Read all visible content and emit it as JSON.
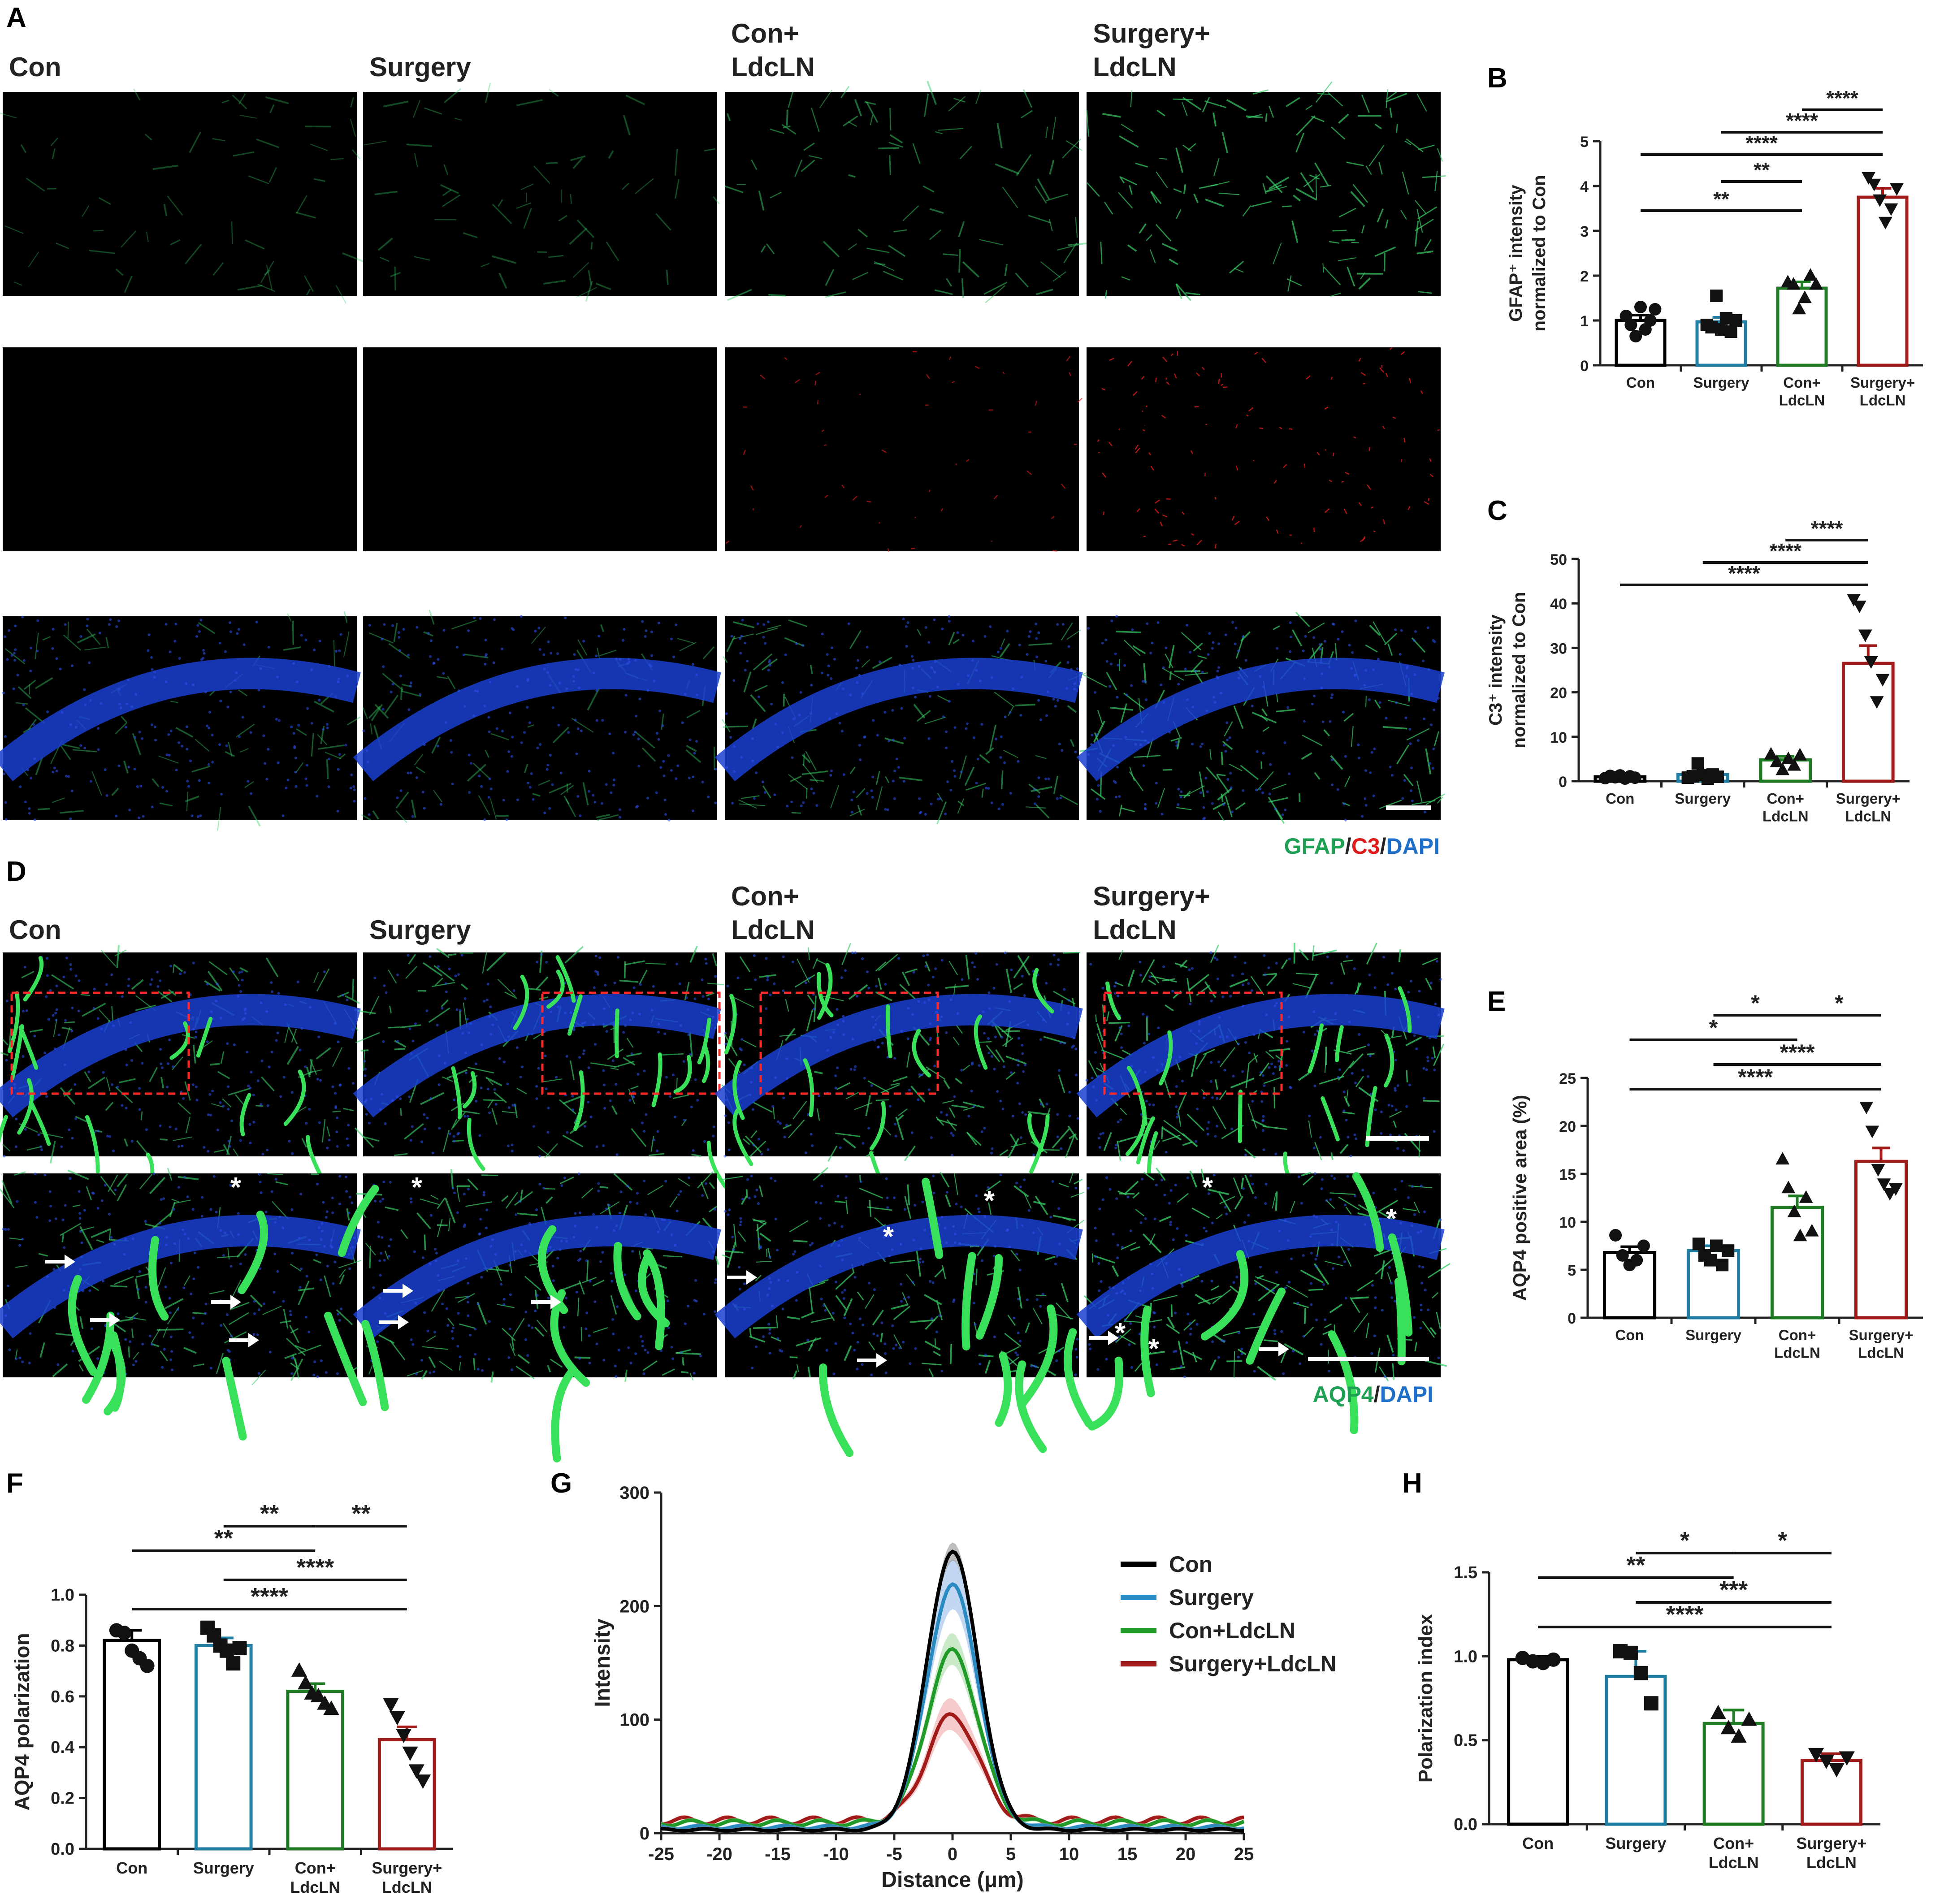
{
  "panels": {
    "a": {
      "letter": "A",
      "columns": [
        "Con",
        "Surgery",
        "Con+\nLdcLN",
        "Surgery+\nLdcLN"
      ],
      "stain": {
        "p1": "GFAP",
        "s1": "/",
        "p2": "C3",
        "s2": "/",
        "p3": "DAPI"
      }
    },
    "d": {
      "letter": "D",
      "columns": [
        "Con",
        "Surgery",
        "Con+\nLdcLN",
        "Surgery+\nLdcLN"
      ],
      "stain": {
        "p1": "AQP4",
        "s1": "/",
        "p2": "DAPI"
      }
    }
  },
  "colors": {
    "con": "#000000",
    "surgery": "#1f7ea1",
    "con_ldcln": "#1e7a23",
    "surgery_ldcln": "#a11b1b",
    "green_stain": "#1ea055",
    "red_stain": "#e01b1b",
    "blue_stain": "#1e6fc8"
  },
  "chart_data": [
    {
      "id": "B",
      "type": "bar",
      "title": "",
      "xlabel": "",
      "ylabel": "GFAP+ intensity normalized to Con",
      "ylabel_lines": [
        "GFAP⁺ intensity",
        "normalized to Con"
      ],
      "categories": [
        "Con",
        "Surgery",
        "Con+\nLdcLN",
        "Surgery+\nLdcLN"
      ],
      "values": [
        1.0,
        0.97,
        1.72,
        3.75
      ],
      "sem": [
        0.12,
        0.1,
        0.14,
        0.2
      ],
      "points": [
        [
          1.1,
          0.9,
          0.65,
          1.3,
          0.8,
          1.0,
          1.25
        ],
        [
          0.9,
          0.85,
          1.55,
          0.8,
          1.05,
          0.75,
          1.0
        ],
        [
          1.85,
          1.8,
          1.25,
          1.5,
          2.0,
          1.8
        ],
        [
          4.2,
          4.05,
          3.7,
          3.2,
          3.5,
          3.95
        ]
      ],
      "markers": [
        "circle",
        "square",
        "triangle",
        "triangle-down"
      ],
      "ylim": [
        0,
        5
      ],
      "yticks": [
        0,
        1,
        2,
        3,
        4,
        5
      ],
      "sig": [
        {
          "from": 2,
          "to": 3,
          "label": "****"
        },
        {
          "from": 1,
          "to": 3,
          "label": "****"
        },
        {
          "from": 0,
          "to": 3,
          "label": "****"
        },
        {
          "from": 1,
          "to": 2,
          "label": "**"
        },
        {
          "from": 0,
          "to": 2,
          "label": "**"
        }
      ]
    },
    {
      "id": "C",
      "type": "bar",
      "title": "",
      "xlabel": "",
      "ylabel": "C3+ intensity normalized to Con",
      "ylabel_lines": [
        "C3⁺ intensity",
        "normalized to Con"
      ],
      "categories": [
        "Con",
        "Surgery",
        "Con+\nLdcLN",
        "Surgery+\nLdcLN"
      ],
      "values": [
        1.0,
        1.5,
        4.8,
        26.5
      ],
      "sem": [
        0.25,
        0.45,
        0.8,
        4.0
      ],
      "points": [
        [
          0.7,
          1.2,
          0.9,
          1.3,
          0.6,
          1.1,
          0.8
        ],
        [
          0.8,
          1.1,
          4.0,
          1.4,
          0.6,
          1.5,
          1.0
        ],
        [
          6.0,
          4.3,
          2.5,
          5.0,
          3.5,
          5.8
        ],
        [
          41,
          39.5,
          33,
          27,
          18,
          23
        ]
      ],
      "markers": [
        "circle",
        "square",
        "triangle",
        "triangle-down"
      ],
      "ylim": [
        0,
        50
      ],
      "yticks": [
        0,
        10,
        20,
        30,
        40,
        50
      ],
      "sig": [
        {
          "from": 2,
          "to": 3,
          "label": "****"
        },
        {
          "from": 1,
          "to": 3,
          "label": "****"
        },
        {
          "from": 0,
          "to": 3,
          "label": "****"
        }
      ]
    },
    {
      "id": "E",
      "type": "bar",
      "title": "",
      "xlabel": "",
      "ylabel": "AQP4 positive area (%)",
      "categories": [
        "Con",
        "Surgery",
        "Con+\nLdcLN",
        "Surgery+\nLdcLN"
      ],
      "values": [
        6.8,
        7.0,
        11.5,
        16.3
      ],
      "sem": [
        0.6,
        0.5,
        1.2,
        1.4
      ],
      "points": [
        [
          8.6,
          6.5,
          5.5,
          6.0,
          7.5
        ],
        [
          7.7,
          6.5,
          6.0,
          7.5,
          5.5,
          7.0
        ],
        [
          16.5,
          13.5,
          11.0,
          8.5,
          12.5,
          9.0
        ],
        [
          22.0,
          19.5,
          15.5,
          14.0,
          13.0,
          13.5
        ]
      ],
      "markers": [
        "circle",
        "square",
        "triangle",
        "triangle-down"
      ],
      "ylim": [
        0,
        25
      ],
      "yticks": [
        0,
        5,
        10,
        15,
        20,
        25
      ],
      "sig": [
        {
          "from": 1,
          "to": 2,
          "label": "*"
        },
        {
          "from": 2,
          "to": 3,
          "label": "*"
        },
        {
          "from": 0,
          "to": 2,
          "label": "*"
        },
        {
          "from": 1,
          "to": 3,
          "label": "****"
        },
        {
          "from": 0,
          "to": 3,
          "label": "****"
        }
      ]
    },
    {
      "id": "F",
      "type": "bar",
      "title": "",
      "xlabel": "",
      "ylabel": "AQP4 polarization",
      "categories": [
        "Con",
        "Surgery",
        "Con+\nLdcLN",
        "Surgery+\nLdcLN"
      ],
      "values": [
        0.82,
        0.8,
        0.62,
        0.43
      ],
      "sem": [
        0.04,
        0.03,
        0.03,
        0.05
      ],
      "points": [
        [
          0.86,
          0.85,
          0.78,
          0.75,
          0.72
        ],
        [
          0.87,
          0.84,
          0.8,
          0.78,
          0.73,
          0.79
        ],
        [
          0.7,
          0.65,
          0.61,
          0.6,
          0.57,
          0.55
        ],
        [
          0.57,
          0.52,
          0.45,
          0.38,
          0.31,
          0.27
        ]
      ],
      "markers": [
        "circle",
        "square",
        "triangle",
        "triangle-down"
      ],
      "ylim": [
        0,
        1.0
      ],
      "yticks": [
        0.0,
        0.2,
        0.4,
        0.6,
        0.8,
        1.0
      ],
      "sig": [
        {
          "from": 1,
          "to": 2,
          "label": "**"
        },
        {
          "from": 2,
          "to": 3,
          "label": "**"
        },
        {
          "from": 0,
          "to": 2,
          "label": "**"
        },
        {
          "from": 1,
          "to": 3,
          "label": "****"
        },
        {
          "from": 0,
          "to": 3,
          "label": "****"
        }
      ]
    },
    {
      "id": "G",
      "type": "line",
      "title": "",
      "xlabel": "Distance (μm)",
      "ylabel": "Intensity",
      "xlim": [
        -25,
        25
      ],
      "ylim": [
        0,
        300
      ],
      "xticks": [
        -25,
        -20,
        -15,
        -10,
        -5,
        0,
        5,
        10,
        15,
        20,
        25
      ],
      "yticks": [
        0,
        100,
        200,
        300
      ],
      "peak_width": 2.2,
      "legend_position": "right",
      "series": [
        {
          "name": "Con",
          "peak": 248,
          "base": 3,
          "ripple": 1,
          "band": 6
        },
        {
          "name": "Surgery",
          "peak": 218,
          "base": 5,
          "ripple": 1.5,
          "band": 20
        },
        {
          "name": "Con+LdcLN",
          "peak": 160,
          "base": 9,
          "ripple": 2.5,
          "band": 12
        },
        {
          "name": "Surgery+LdcLN",
          "peak": 104,
          "base": 11,
          "ripple": 3,
          "band": 12
        }
      ]
    },
    {
      "id": "H",
      "type": "bar",
      "title": "",
      "xlabel": "",
      "ylabel": "Polarization index",
      "categories": [
        "Con",
        "Surgery",
        "Con+\nLdcLN",
        "Surgery+\nLdcLN"
      ],
      "values": [
        0.98,
        0.88,
        0.6,
        0.38
      ],
      "sem": [
        0.02,
        0.15,
        0.08,
        0.04
      ],
      "points": [
        [
          0.99,
          0.97,
          0.96,
          0.98
        ],
        [
          1.03,
          1.02,
          0.9,
          0.72
        ],
        [
          0.66,
          0.57,
          0.52,
          0.62
        ],
        [
          0.42,
          0.38,
          0.33,
          0.4
        ]
      ],
      "markers": [
        "circle",
        "square",
        "triangle",
        "triangle-down"
      ],
      "ylim": [
        0,
        1.5
      ],
      "yticks": [
        0.0,
        0.5,
        1.0,
        1.5
      ],
      "sig": [
        {
          "from": 1,
          "to": 2,
          "label": "*"
        },
        {
          "from": 2,
          "to": 3,
          "label": "*"
        },
        {
          "from": 0,
          "to": 2,
          "label": "**"
        },
        {
          "from": 1,
          "to": 3,
          "label": "***"
        },
        {
          "from": 0,
          "to": 3,
          "label": "****"
        }
      ]
    }
  ]
}
